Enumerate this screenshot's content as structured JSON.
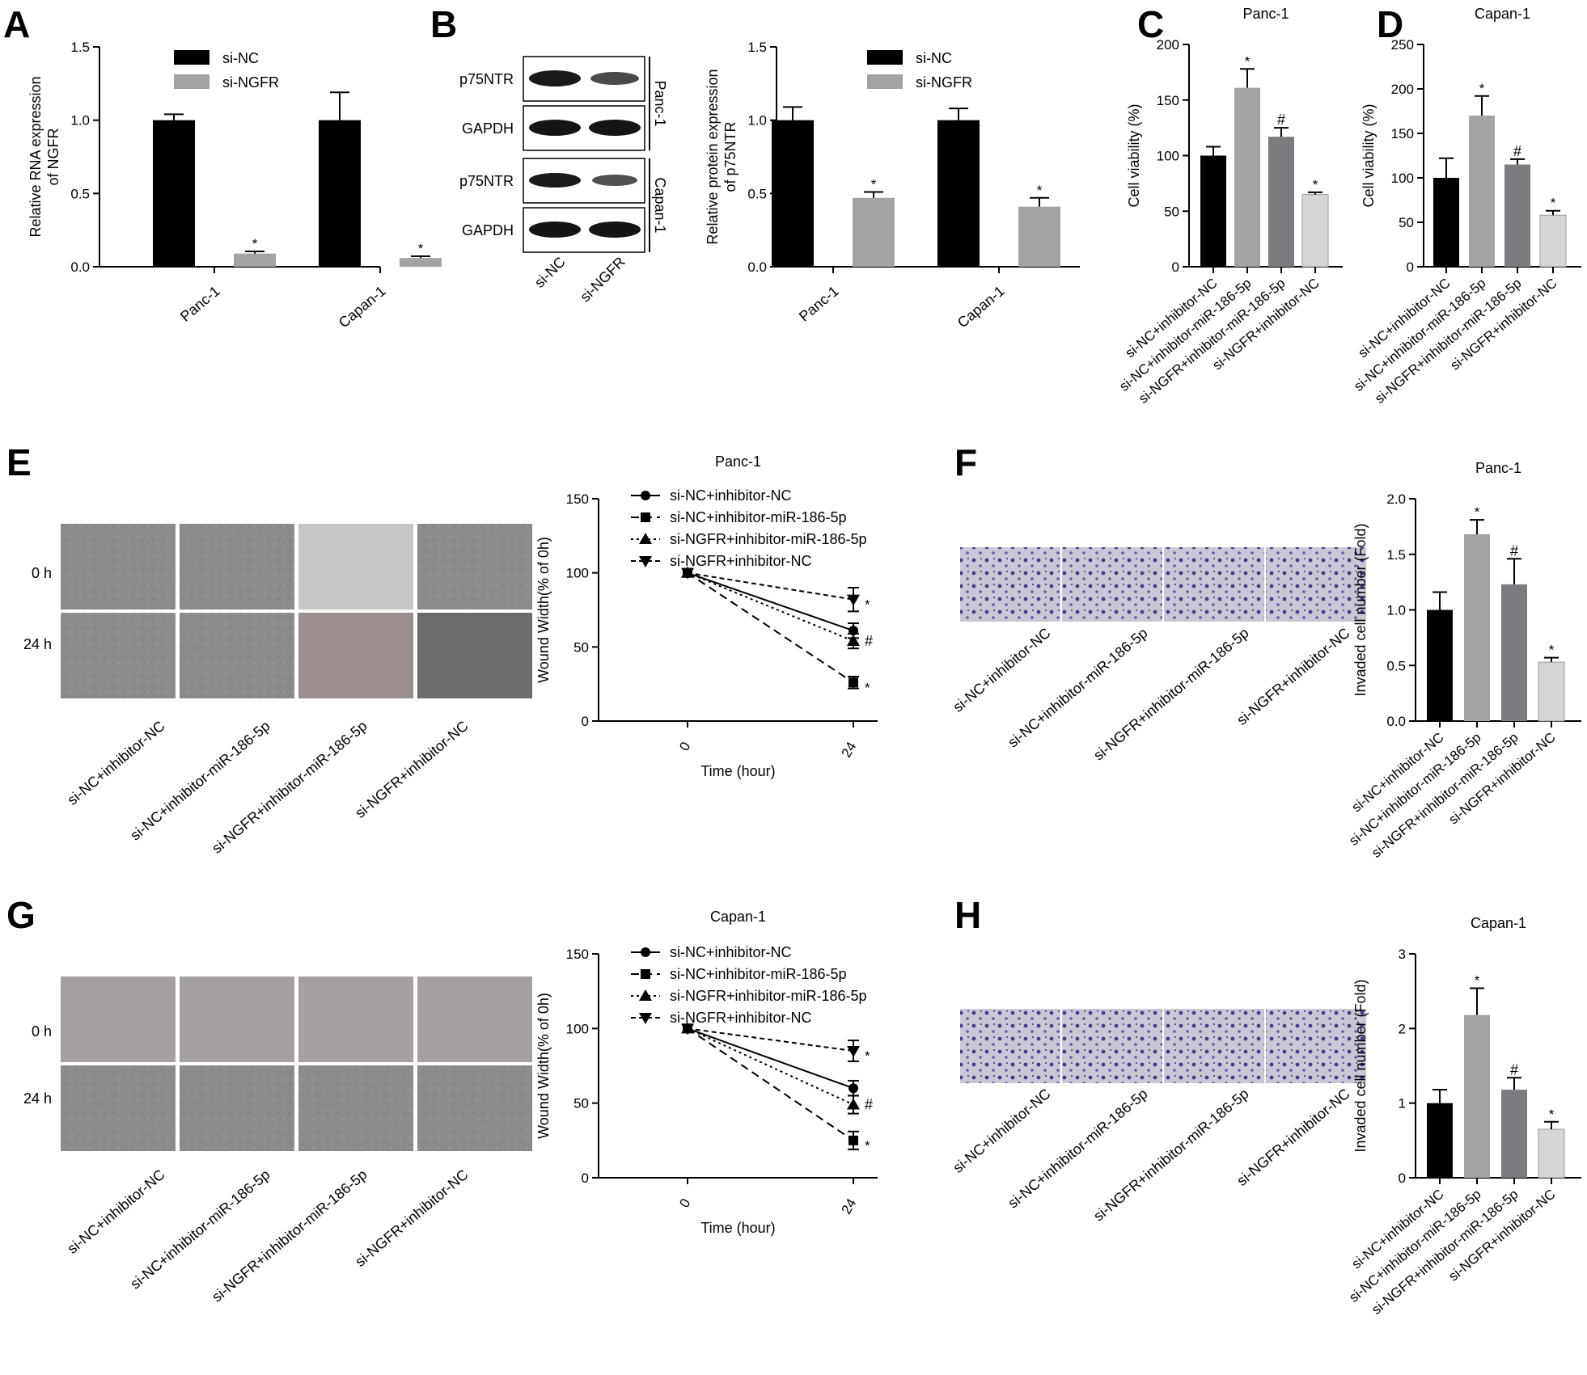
{
  "panel_labels": [
    "A",
    "B",
    "C",
    "D",
    "E",
    "F",
    "G",
    "H"
  ],
  "blot": {
    "rows": [
      "p75NTR",
      "GAPDH",
      "p75NTR",
      "GAPDH"
    ],
    "groups": [
      "Panc-1",
      "Capan-1"
    ],
    "lanes": [
      "si-NC",
      "si-NGFR"
    ]
  },
  "wound": {
    "time_labels": [
      "0 h",
      "24 h"
    ],
    "conditions": [
      "si-NC+inhibitor-NC",
      "si-NC+inhibitor-miR-186-5p",
      "si-NGFR+inhibitor-miR-186-5p",
      "si-NGFR+inhibitor-NC"
    ]
  },
  "transwell": {
    "conditions": [
      "si-NC+inhibitor-NC",
      "si-NC+inhibitor-miR-186-5p",
      "si-NGFR+inhibitor-miR-186-5p",
      "si-NGFR+inhibitor-NC"
    ]
  },
  "colors": {
    "black": "#000000",
    "grey1": "#a3a3a6",
    "grey2": "#7c7c80",
    "grey3": "#d6d6d8"
  },
  "chart_data": [
    {
      "id": "A",
      "type": "bar",
      "title": "",
      "ylabel": [
        "Relative RNA expression",
        "of NGFR"
      ],
      "categories": [
        "Panc-1",
        "Capan-1"
      ],
      "series": [
        {
          "name": "si-NC",
          "values": [
            1.0,
            1.0
          ],
          "errors": [
            0.04,
            0.19
          ],
          "marks": [
            "",
            ""
          ]
        },
        {
          "name": "si-NGFR",
          "values": [
            0.09,
            0.06
          ],
          "errors": [
            0.015,
            0.012
          ],
          "marks": [
            "*",
            "*"
          ]
        }
      ],
      "ylim": [
        0,
        1.5
      ],
      "yticks": [
        "0.0",
        "0.5",
        "1.0",
        "1.5"
      ]
    },
    {
      "id": "B",
      "type": "bar",
      "title": "",
      "ylabel": [
        "Relative protein expression",
        "of p75NTR"
      ],
      "categories": [
        "Panc-1",
        "Capan-1"
      ],
      "series": [
        {
          "name": "si-NC",
          "values": [
            1.0,
            1.0
          ],
          "errors": [
            0.09,
            0.08
          ],
          "marks": [
            "",
            ""
          ]
        },
        {
          "name": "si-NGFR",
          "values": [
            0.47,
            0.41
          ],
          "errors": [
            0.04,
            0.06
          ],
          "marks": [
            "*",
            "*"
          ]
        }
      ],
      "ylim": [
        0,
        1.5
      ],
      "yticks": [
        "0.0",
        "0.5",
        "1.0",
        "1.5"
      ]
    },
    {
      "id": "C",
      "type": "bar",
      "title": "Panc-1",
      "ylabel": [
        "Cell viability (%)"
      ],
      "categories": [
        "si-NC+inhibitor-NC",
        "si-NC+inhibitor-miR-186-5p",
        "si-NGFR+inhibitor-miR-186-5p",
        "si-NGFR+inhibitor-NC"
      ],
      "values": [
        100,
        161,
        117,
        65
      ],
      "errors": [
        8,
        17,
        8,
        2
      ],
      "marks": [
        "",
        "*",
        "#",
        "*"
      ],
      "ylim": [
        0,
        200
      ],
      "yticks": [
        "0",
        "50",
        "100",
        "150",
        "200"
      ]
    },
    {
      "id": "D",
      "type": "bar",
      "title": "Capan-1",
      "ylabel": [
        "Cell viability (%)"
      ],
      "categories": [
        "si-NC+inhibitor-NC",
        "si-NC+inhibitor-miR-186-5p",
        "si-NGFR+inhibitor-miR-186-5p",
        "si-NGFR+inhibitor-NC"
      ],
      "values": [
        100,
        170,
        115,
        58
      ],
      "errors": [
        22,
        22,
        6,
        5
      ],
      "marks": [
        "",
        "*",
        "#",
        "*"
      ],
      "ylim": [
        0,
        250
      ],
      "yticks": [
        "0",
        "50",
        "100",
        "150",
        "200",
        "250"
      ]
    },
    {
      "id": "E",
      "type": "line",
      "title": "Panc-1",
      "xlabel": "Time (hour)",
      "ylabel": [
        "Wound Width(% of 0h)"
      ],
      "x": [
        0,
        24
      ],
      "xticks": [
        "0",
        "24"
      ],
      "ylim": [
        0,
        150
      ],
      "yticks": [
        "0",
        "50",
        "100",
        "150"
      ],
      "series": [
        {
          "name": "si-NC+inhibitor-NC",
          "values": [
            100,
            61
          ],
          "errors": [
            0,
            5
          ],
          "mark": "",
          "marker": "circle",
          "dash": ""
        },
        {
          "name": "si-NC+inhibitor-miR-186-5p",
          "values": [
            100,
            26
          ],
          "errors": [
            0,
            4
          ],
          "mark": "*",
          "marker": "square",
          "dash": "10,6"
        },
        {
          "name": "si-NGFR+inhibitor-miR-186-5p",
          "values": [
            100,
            54
          ],
          "errors": [
            0,
            5
          ],
          "mark": "#",
          "marker": "triangle",
          "dash": "3,4"
        },
        {
          "name": "si-NGFR+inhibitor-NC",
          "values": [
            100,
            82
          ],
          "errors": [
            0,
            8
          ],
          "mark": "*",
          "marker": "triangle-down",
          "dash": "6,4"
        }
      ]
    },
    {
      "id": "F",
      "type": "bar",
      "title": "Panc-1",
      "ylabel": [
        "Invaded cell number (Fold)"
      ],
      "categories": [
        "si-NC+inhibitor-NC",
        "si-NC+inhibitor-miR-186-5p",
        "si-NGFR+inhibitor-miR-186-5p",
        "si-NGFR+inhibitor-NC"
      ],
      "values": [
        1.0,
        1.68,
        1.23,
        0.53
      ],
      "errors": [
        0.16,
        0.13,
        0.23,
        0.04
      ],
      "marks": [
        "",
        "*",
        "#",
        "*"
      ],
      "ylim": [
        0,
        2.0
      ],
      "yticks": [
        "0.0",
        "0.5",
        "1.0",
        "1.5",
        "2.0"
      ]
    },
    {
      "id": "G",
      "type": "line",
      "title": "Capan-1",
      "xlabel": "Time (hour)",
      "ylabel": [
        "Wound Width(% of 0h)"
      ],
      "x": [
        0,
        24
      ],
      "xticks": [
        "0",
        "24"
      ],
      "ylim": [
        0,
        150
      ],
      "yticks": [
        "0",
        "50",
        "100",
        "150"
      ],
      "series": [
        {
          "name": "si-NC+inhibitor-NC",
          "values": [
            100,
            60
          ],
          "errors": [
            0,
            5
          ],
          "mark": "",
          "marker": "circle",
          "dash": ""
        },
        {
          "name": "si-NC+inhibitor-miR-186-5p",
          "values": [
            100,
            25
          ],
          "errors": [
            0,
            6
          ],
          "mark": "*",
          "marker": "square",
          "dash": "10,6"
        },
        {
          "name": "si-NGFR+inhibitor-miR-186-5p",
          "values": [
            100,
            49
          ],
          "errors": [
            0,
            6
          ],
          "mark": "#",
          "marker": "triangle",
          "dash": "3,4"
        },
        {
          "name": "si-NGFR+inhibitor-NC",
          "values": [
            100,
            85
          ],
          "errors": [
            0,
            7
          ],
          "mark": "*",
          "marker": "triangle-down",
          "dash": "6,4"
        }
      ]
    },
    {
      "id": "H",
      "type": "bar",
      "title": "Capan-1",
      "ylabel": [
        "Invaded cell number (Fold)"
      ],
      "categories": [
        "si-NC+inhibitor-NC",
        "si-NC+inhibitor-miR-186-5p",
        "si-NGFR+inhibitor-miR-186-5p",
        "si-NGFR+inhibitor-NC"
      ],
      "values": [
        1.0,
        2.18,
        1.18,
        0.65
      ],
      "errors": [
        0.18,
        0.36,
        0.16,
        0.1
      ],
      "marks": [
        "",
        "*",
        "#",
        "*"
      ],
      "ylim": [
        0,
        3
      ],
      "yticks": [
        "0",
        "1",
        "2",
        "3"
      ]
    }
  ]
}
